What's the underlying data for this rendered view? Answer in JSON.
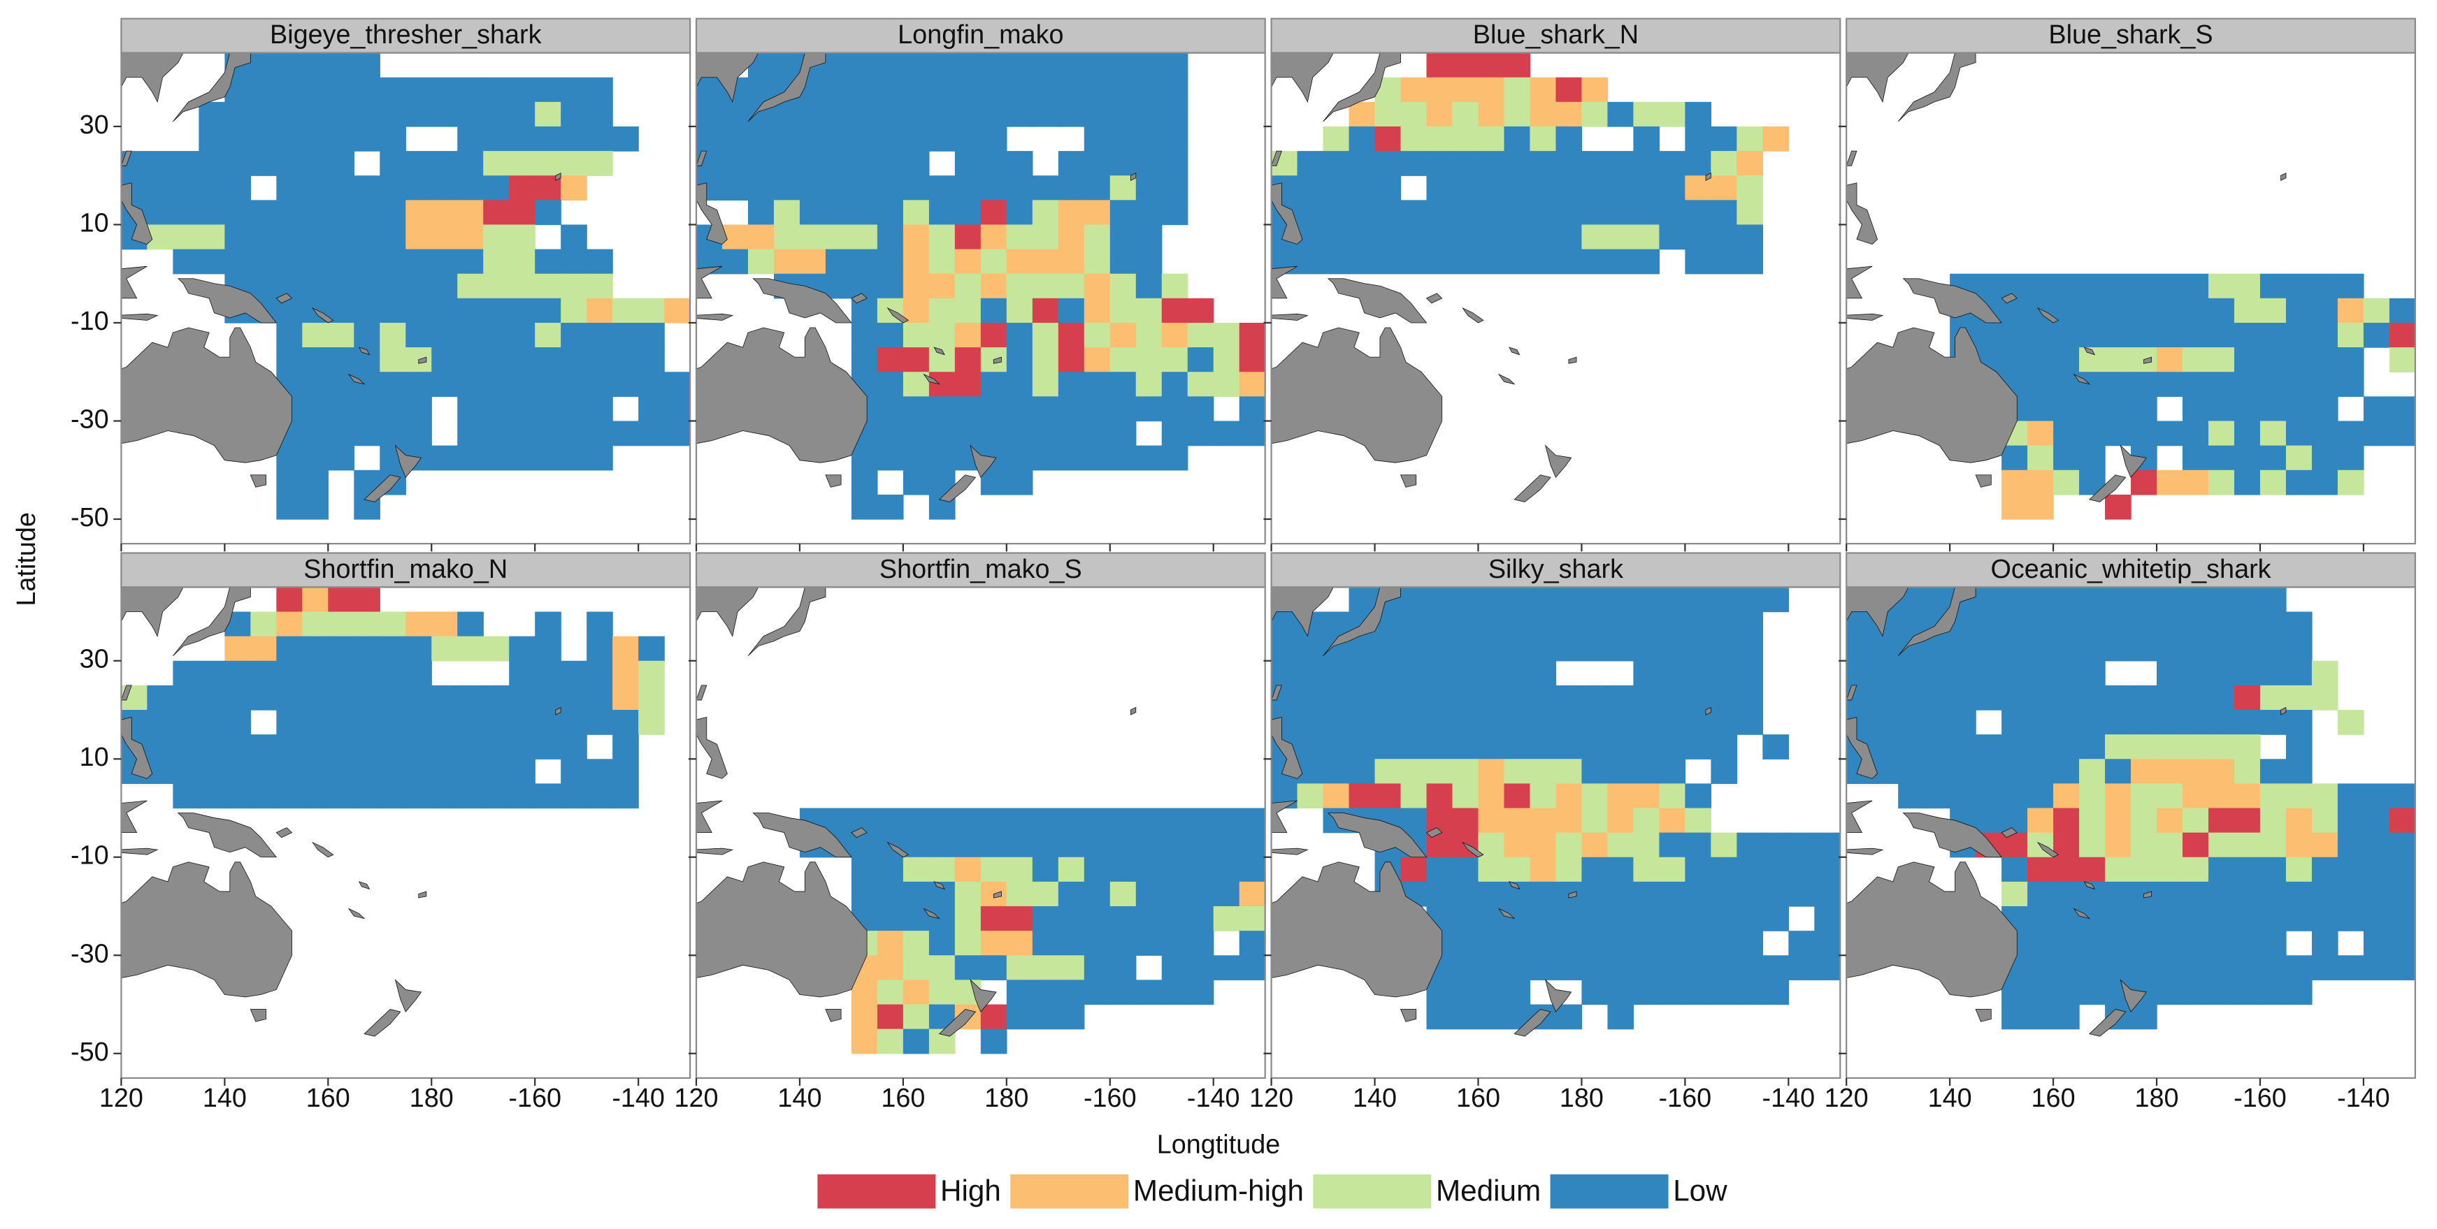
{
  "chart_data": {
    "type": "heatmap",
    "xlabel": "Longtitude",
    "ylabel": "Latitude",
    "xlim": [
      120,
      230
    ],
    "ylim": [
      -55,
      45
    ],
    "xticks": [
      120,
      140,
      160,
      180,
      {
        "value": 200,
        "label": "-160"
      },
      {
        "value": 220,
        "label": "-140"
      }
    ],
    "yticks": [
      30,
      10,
      -10,
      -30,
      -50
    ],
    "legend": [
      {
        "name": "High",
        "color": "#d6404e"
      },
      {
        "name": "Medium-high",
        "color": "#fcbf72"
      },
      {
        "name": "Medium",
        "color": "#c6e79b"
      },
      {
        "name": "Low",
        "color": "#3286bf"
      }
    ],
    "panels": [
      {
        "title": "Bigeye_thresher_shark",
        "grid": [
          "....333333............",
          "....333333333333333...",
          "...3333333333333233...",
          "...33333333..3333333..",
          "333333333.333322222...",
          "33333.333333333001....",
          "33333333333111003.....",
          "3222333333311122.3....",
          "..33333333333322333...",
          "....333333333222222...",
          "....333333333333321221",
          "......322323333323333.",
          "......333322333333333.",
          "......3333333333333333",
          "......333333.333333.33",
          "......333333.333333333",
          "......333.333333333...",
          "......33.33...........",
          "......33.3............"
        ]
      },
      {
        "title": "Longfin_mako",
        "grid": [
          "..33333333333333333...",
          "3333333333333333333...",
          "3333333333333333333...",
          "333333333333...3333...",
          "333333333.333.33333...",
          "3333333333333333233...",
          "..32333323303211333...",
          "311222231201221233....",
          "332113331212111233....",
          "...3333311212221232...",
          "......32122320312200..",
          "......3322103202121220",
          "......3002023201222320",
          "......3320033233323221",
          "......33333333333333.3",
          "......33333333333.3333",
          "......3333333333333...",
          "......3.33.33.........",
          "......33.3............"
        ]
      },
      {
        "title": "Blue_shark_N",
        "grid": [
          "......0000............",
          "....211112101.........",
          "...12212121123223.....",
          "..2302222323..3.3321..",
          "2333333333333333321...",
          "33333.3333333333112...",
          "3333333333333333332...",
          "3333333333332223333...",
          "333333333333333.333..."
        ]
      },
      {
        "title": "Blue_shark_S",
        "grid": [
          "......................",
          "......................",
          "......................",
          "......................",
          "......................",
          "......................",
          "......................",
          "......................",
          "......................",
          "....3333333333223333..",
          "....333333333332233123",
          "....333333333333333230",
          "....3333322212233333.2",
          "....3333333333333333..",
          "....33333333.333333.33",
          "......2133333323233333",
          "......3233.3.3333233..",
          "......1123.011232332..",
          "......11..0..........."
        ]
      },
      {
        "title": "Shortfin_mako_N",
        "grid": [
          "......0100............",
          "....3212222113..3.3...",
          "....1133333322233.313.",
          "..3333333333...333312.",
          "233333333333333333312.",
          "33333.333333333333332.",
          "333333333333333333.3..",
          "3333333333333333.333..",
          "..333333333333333333.."
        ]
      },
      {
        "title": "Shortfin_mako_S",
        "grid": [
          "......................",
          "......................",
          "......................",
          "......................",
          "......................",
          "......................",
          "......................",
          "......................",
          "......................",
          "....333333333333333333",
          "....333333333333333333",
          "......3322122323333333",
          "......3333212233233331",
          "......3333200333333322",
          "......21232113333333.3",
          "......11223322233.3333",
          "......12122.33333333..",
          "......102310333.......",
          "......1232.3.........."
        ]
      },
      {
        "title": "Silky_shark",
        "grid": [
          "...33333333333333333..",
          "3333333333333333333...",
          "3333333333333333333...",
          "33333333333...33333...",
          "3333333333333333333...",
          "3333333333333333333...",
          "333333333333333333.3..",
          "3333222212223333.3....",
          "32100202102121123.....",
          "..333300111121212.....",
          "....330021121223323333",
          "....303322123322333333",
          "....333333333333333333",
          "......33333333333333.3",
          "......3333333333333.33",
          "......3333333333333333",
          "......3333..33333333..",
          "......333333.3........"
        ]
      },
      {
        "title": "Oceanic_whitetip_shark",
        "grid": [
          "33333333333333333.....",
          "333333333333333333....",
          "333333333333333333....",
          "3333333333..3333332...",
          "3333333333333330222...",
          "33333.333333333333.2..",
          "3333333333222222.3....",
          "333333333231111233....",
          "..33333312122111222333",
          "....333102121200212330",
          "....300202122022211333",
          "......3000222233323333",
          "......2333333333333333",
          "......3333333333333333",
          "......33333333333.3.33",
          "......3333333333333333",
          "......333333333333....",
          "......333.33.........."
        ]
      }
    ]
  }
}
